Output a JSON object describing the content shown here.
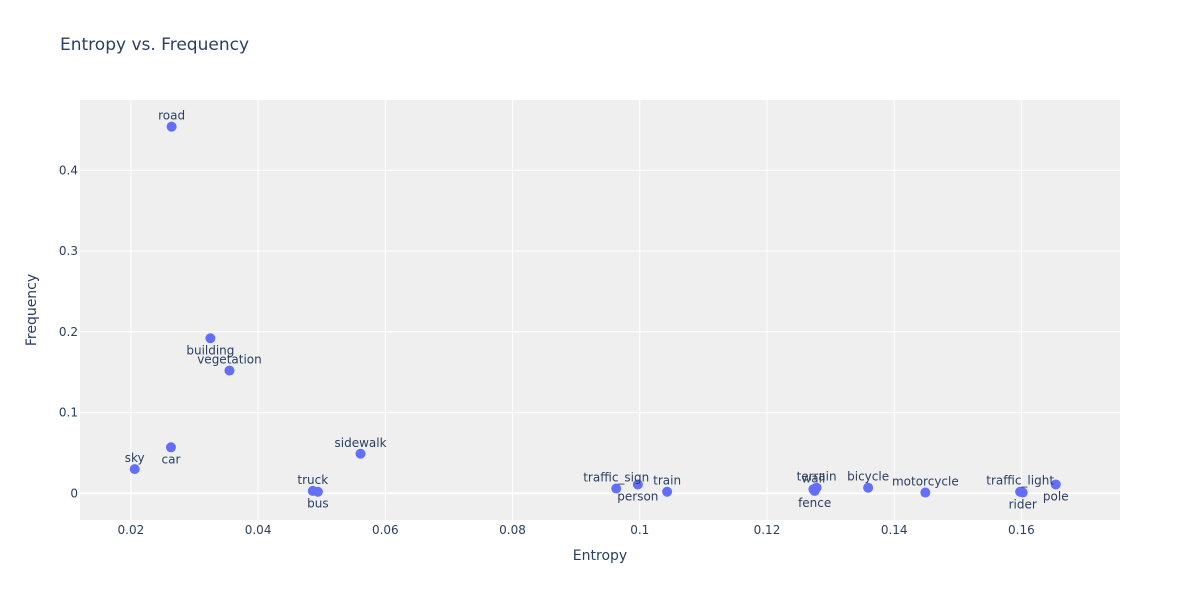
{
  "chart_data": {
    "type": "scatter",
    "title": "Entropy vs. Frequency",
    "xlabel": "Entropy",
    "ylabel": "Frequency",
    "xlim": [
      0.012,
      0.1755
    ],
    "ylim": [
      -0.033,
      0.487
    ],
    "xticks": [
      0.02,
      0.04,
      0.06,
      0.08,
      0.1,
      0.12,
      0.14,
      0.16
    ],
    "xtick_labels": [
      "0.02",
      "0.04",
      "0.06",
      "0.08",
      "0.1",
      "0.12",
      "0.14",
      "0.16"
    ],
    "yticks": [
      0,
      0.1,
      0.2,
      0.3,
      0.4
    ],
    "ytick_labels": [
      "0",
      "0.1",
      "0.2",
      "0.3",
      "0.4"
    ],
    "grid": true,
    "marker_color": "#636efa",
    "plot_bgcolor": "#efefef",
    "points": [
      {
        "label": "road",
        "x": 0.0264,
        "y": 0.454,
        "pos": "top"
      },
      {
        "label": "building",
        "x": 0.0325,
        "y": 0.192,
        "pos": "bottom"
      },
      {
        "label": "vegetation",
        "x": 0.0355,
        "y": 0.152,
        "pos": "top"
      },
      {
        "label": "car",
        "x": 0.0263,
        "y": 0.057,
        "pos": "bottom"
      },
      {
        "label": "sky",
        "x": 0.0206,
        "y": 0.03,
        "pos": "top"
      },
      {
        "label": "sidewalk",
        "x": 0.0561,
        "y": 0.049,
        "pos": "top"
      },
      {
        "label": "truck",
        "x": 0.0486,
        "y": 0.003,
        "pos": "top"
      },
      {
        "label": "bus",
        "x": 0.0494,
        "y": 0.002,
        "pos": "bottom"
      },
      {
        "label": "traffic_sign",
        "x": 0.0963,
        "y": 0.006,
        "pos": "top"
      },
      {
        "label": "person",
        "x": 0.0997,
        "y": 0.011,
        "pos": "bottom"
      },
      {
        "label": "train",
        "x": 0.1043,
        "y": 0.002,
        "pos": "top"
      },
      {
        "label": "terrain",
        "x": 0.1278,
        "y": 0.007,
        "pos": "top"
      },
      {
        "label": "wall",
        "x": 0.1273,
        "y": 0.005,
        "pos": "top"
      },
      {
        "label": "fence",
        "x": 0.1275,
        "y": 0.003,
        "pos": "bottom"
      },
      {
        "label": "bicycle",
        "x": 0.1359,
        "y": 0.007,
        "pos": "top"
      },
      {
        "label": "motorcycle",
        "x": 0.1449,
        "y": 0.001,
        "pos": "top"
      },
      {
        "label": "traffic_light",
        "x": 0.1598,
        "y": 0.002,
        "pos": "top"
      },
      {
        "label": "rider",
        "x": 0.1602,
        "y": 0.001,
        "pos": "bottom"
      },
      {
        "label": "pole",
        "x": 0.1654,
        "y": 0.011,
        "pos": "bottom"
      }
    ]
  }
}
